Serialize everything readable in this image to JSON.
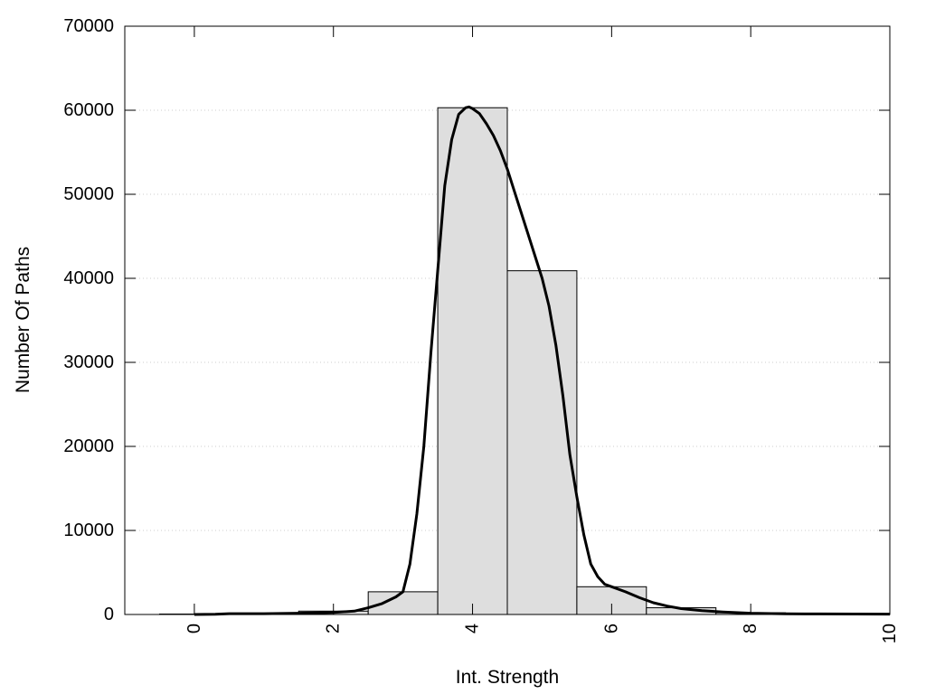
{
  "chart_data": {
    "type": "bar",
    "xlabel": "Int. Strength",
    "ylabel": "Number Of Paths",
    "xlim": [
      -1,
      10
    ],
    "ylim": [
      0,
      70000
    ],
    "x_ticks": [
      0,
      2,
      4,
      6,
      8,
      10
    ],
    "y_ticks": [
      0,
      10000,
      20000,
      30000,
      40000,
      50000,
      60000,
      70000
    ],
    "grid": "horizontal dotted",
    "bar_width": 1,
    "bars": [
      {
        "x": 0,
        "value": 50
      },
      {
        "x": 1,
        "value": 100
      },
      {
        "x": 2,
        "value": 400
      },
      {
        "x": 3,
        "value": 2700
      },
      {
        "x": 4,
        "value": 60300
      },
      {
        "x": 5,
        "value": 40900
      },
      {
        "x": 6,
        "value": 3300
      },
      {
        "x": 7,
        "value": 800
      },
      {
        "x": 8,
        "value": 200
      },
      {
        "x": 9,
        "value": 100
      },
      {
        "x": 10,
        "value": 50
      }
    ],
    "curve": {
      "x": [
        0,
        0.3,
        0.5,
        1,
        1.5,
        2,
        2.3,
        2.5,
        2.7,
        2.9,
        3,
        3.1,
        3.2,
        3.3,
        3.4,
        3.5,
        3.6,
        3.7,
        3.8,
        3.9,
        3.95,
        4,
        4.1,
        4.2,
        4.3,
        4.4,
        4.5,
        4.6,
        4.8,
        5,
        5.1,
        5.2,
        5.3,
        5.4,
        5.5,
        5.6,
        5.7,
        5.8,
        5.9,
        6,
        6.2,
        6.4,
        6.6,
        6.8,
        7,
        7.3,
        7.6,
        8,
        8.5,
        9,
        9.5,
        10
      ],
      "y": [
        0,
        20,
        100,
        100,
        150,
        250,
        400,
        800,
        1300,
        2100,
        2700,
        6000,
        12000,
        20000,
        31000,
        41000,
        51000,
        56500,
        59500,
        60300,
        60400,
        60200,
        59600,
        58400,
        57000,
        55200,
        53000,
        50400,
        45200,
        40000,
        36700,
        32000,
        26000,
        19000,
        14000,
        9500,
        6000,
        4500,
        3600,
        3300,
        2700,
        2000,
        1400,
        1000,
        700,
        450,
        300,
        150,
        80,
        60,
        50,
        40
      ]
    },
    "colors": {
      "bar_fill": "#dedede",
      "bar_stroke": "#000000",
      "curve": "#000000",
      "grid": "#cccccc"
    }
  }
}
